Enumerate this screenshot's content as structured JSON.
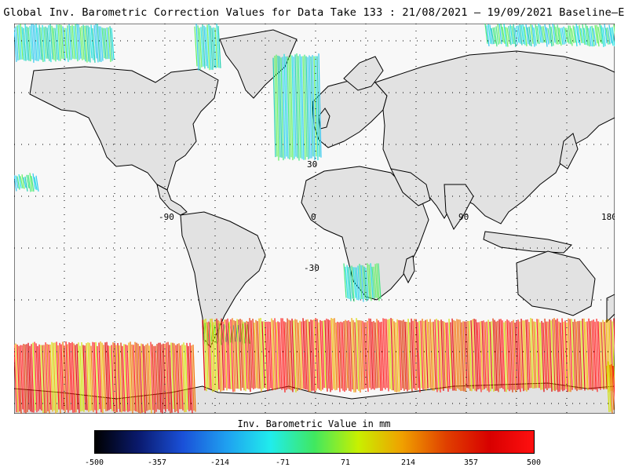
{
  "title": "Global Inv. Barometric Correction Values for Data Take 133 : 21/08/2021 – 19/09/2021 Baseline–E",
  "map": {
    "projection": "equirectangular",
    "lon_range": [
      -180,
      180
    ],
    "lat_range": [
      -70,
      80
    ],
    "grid": true,
    "longitude_labels": [
      "-90",
      "0",
      "90",
      "180"
    ],
    "latitude_labels": [
      "30",
      "-30"
    ],
    "land_color": "#e2e2e2",
    "ocean_color": "#f8f8f8"
  },
  "colorbar": {
    "label": "Inv. Barometric Value in mm",
    "ticks": [
      "-500",
      "-357",
      "-214",
      "-71",
      "71",
      "214",
      "357",
      "500"
    ],
    "range": [
      -500,
      500
    ],
    "colors": [
      "#000000",
      "#0a1a6e",
      "#1a50d8",
      "#1fa0f0",
      "#20ecec",
      "#40e860",
      "#c8f000",
      "#f0a000",
      "#e04000",
      "#d80000",
      "#ff1010"
    ]
  }
}
